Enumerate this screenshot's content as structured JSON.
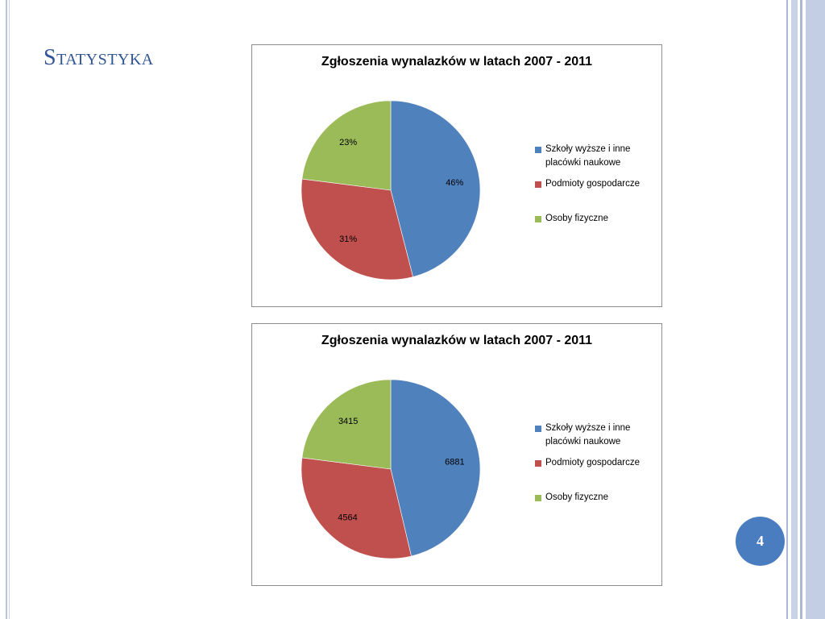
{
  "slide": {
    "title": "Statystyka",
    "page_number": "4"
  },
  "colors": {
    "title": "#2f5496",
    "badge": "#4a7dc0",
    "series": [
      "#4f81bd",
      "#c0504d",
      "#9bbb59"
    ]
  },
  "chart_data": [
    {
      "type": "pie",
      "title": "Zgłoszenia wynalazków w latach 2007 - 2011",
      "categories": [
        "Szkoły wyższe  i inne placówki naukowe",
        "Podmioty gospodarcze",
        "Osoby fizyczne"
      ],
      "values": [
        46,
        31,
        23
      ],
      "data_labels": [
        "46%",
        "31%",
        "23%"
      ],
      "legend_position": "right"
    },
    {
      "type": "pie",
      "title": "Zgłoszenia wynalazków w latach 2007 - 2011",
      "categories": [
        "Szkoły wyższe  i inne placówki naukowe",
        "Podmioty gospodarcze",
        "Osoby fizyczne"
      ],
      "values": [
        6881,
        4564,
        3415
      ],
      "data_labels": [
        "6881",
        "4564",
        "3415"
      ],
      "legend_position": "right"
    }
  ]
}
